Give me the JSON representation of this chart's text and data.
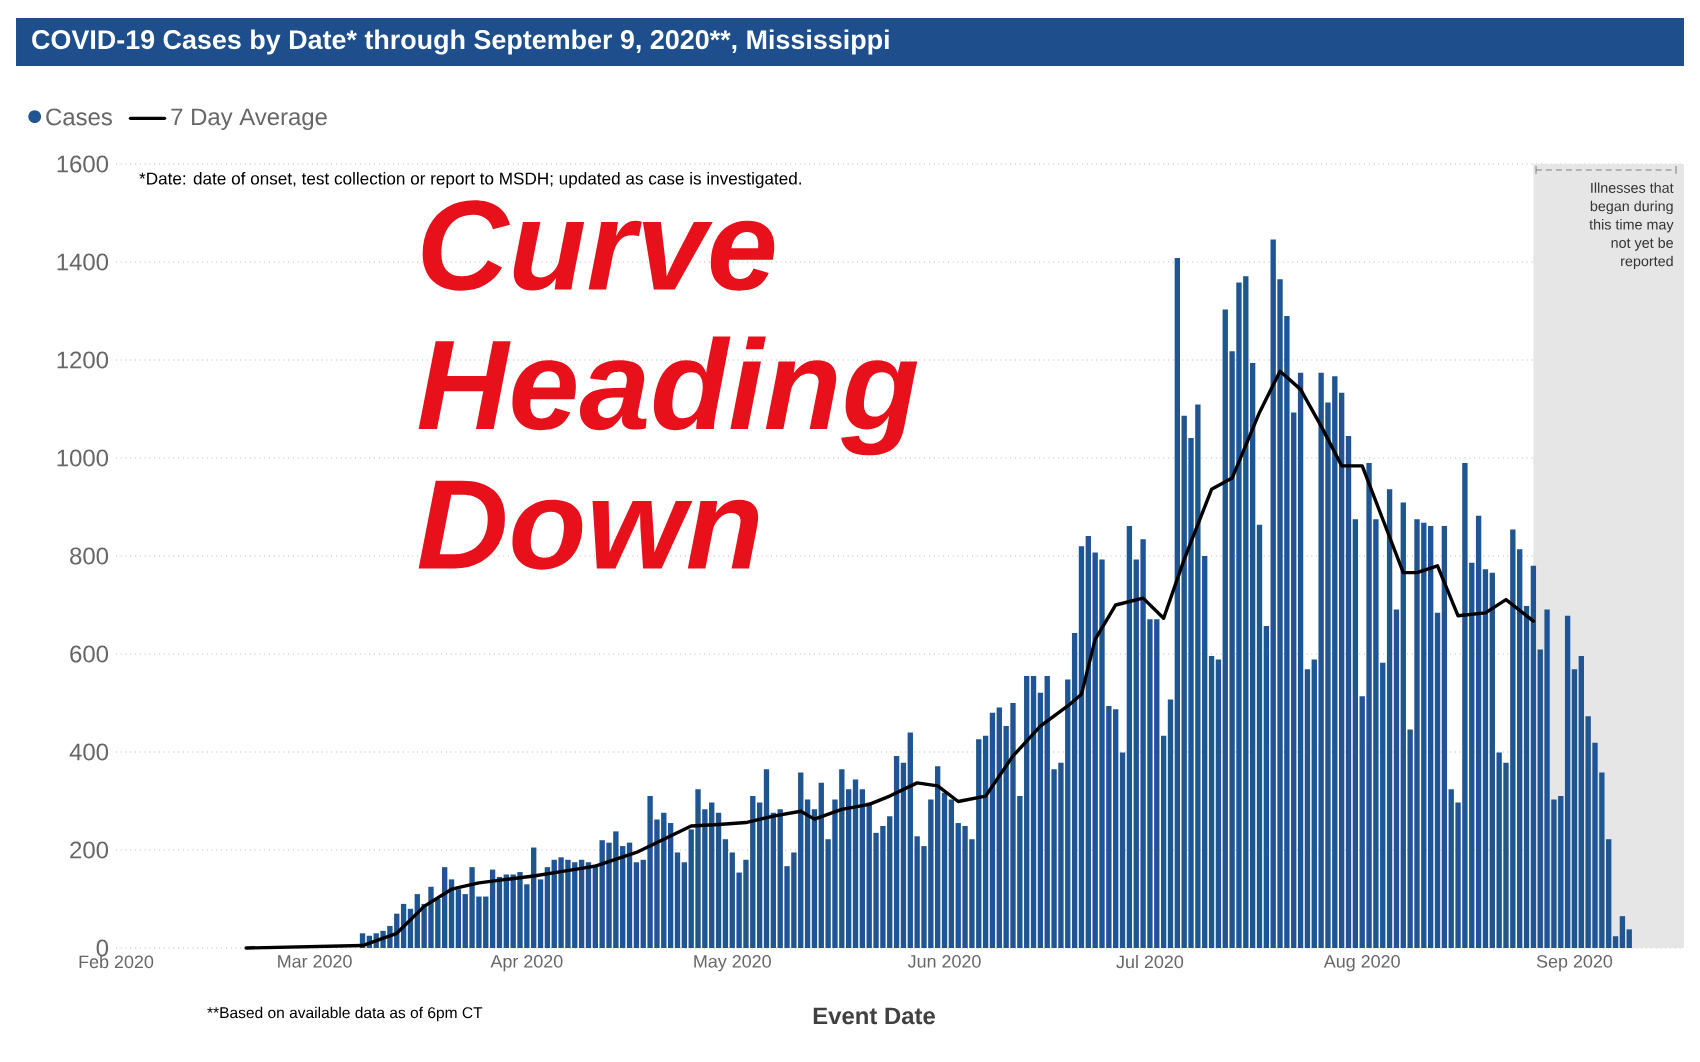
{
  "chart_data": {
    "type": "bar",
    "title": "COVID-19 Cases by Date* through September 9, 2020**, Mississippi",
    "xlabel": "Event Date",
    "annotations": [
      "*Date: date of onset, test collection or report to MSDH; updated as case is investigated.",
      "Curve Heading Down",
      "**Based on available data as of 6pm CT"
    ],
    "xlim": [
      "2020-02-01",
      "2020-09-17"
    ],
    "xticks": [
      {
        "value": "2020-02-01",
        "label": "Feb 2020"
      },
      {
        "value": "2020-03-01",
        "label": "Mar 2020"
      },
      {
        "value": "2020-04-01",
        "label": "Apr 2020"
      },
      {
        "value": "2020-05-01",
        "label": "May 2020"
      },
      {
        "value": "2020-06-01",
        "label": "Jun 2020"
      },
      {
        "value": "2020-07-01",
        "label": "Jul 2020"
      },
      {
        "value": "2020-08-01",
        "label": "Aug 2020"
      },
      {
        "value": "2020-09-01",
        "label": "Sep 2020"
      }
    ],
    "ylim": [
      0,
      1600
    ],
    "yticks": [
      0,
      200,
      400,
      600,
      800,
      1000,
      1200,
      1400,
      1600
    ],
    "grid": "y",
    "legend": "top left",
    "bands": [
      {
        "axis": "x",
        "from": "2020-08-26",
        "to": "2020-09-17",
        "label": "Illnesses that began during this time may not yet be reported",
        "color": "#e6e6e6"
      }
    ],
    "series": [
      {
        "name": "Cases",
        "color": "#1f5592",
        "x": [
          "2020-03-08",
          "2020-03-09",
          "2020-03-10",
          "2020-03-11",
          "2020-03-12",
          "2020-03-13",
          "2020-03-14",
          "2020-03-15",
          "2020-03-16",
          "2020-03-17",
          "2020-03-18",
          "2020-03-19",
          "2020-03-20",
          "2020-03-21",
          "2020-03-22",
          "2020-03-23",
          "2020-03-24",
          "2020-03-25",
          "2020-03-26",
          "2020-03-27",
          "2020-03-28",
          "2020-03-29",
          "2020-03-30",
          "2020-03-31",
          "2020-04-01",
          "2020-04-02",
          "2020-04-03",
          "2020-04-04",
          "2020-04-05",
          "2020-04-06",
          "2020-04-07",
          "2020-04-08",
          "2020-04-09",
          "2020-04-10",
          "2020-04-11",
          "2020-04-12",
          "2020-04-13",
          "2020-04-14",
          "2020-04-15",
          "2020-04-16",
          "2020-04-17",
          "2020-04-18",
          "2020-04-19",
          "2020-04-20",
          "2020-04-21",
          "2020-04-22",
          "2020-04-23",
          "2020-04-24",
          "2020-04-25",
          "2020-04-26",
          "2020-04-27",
          "2020-04-28",
          "2020-04-29",
          "2020-04-30",
          "2020-05-01",
          "2020-05-02",
          "2020-05-03",
          "2020-05-04",
          "2020-05-05",
          "2020-05-06",
          "2020-05-07",
          "2020-05-08",
          "2020-05-09",
          "2020-05-10",
          "2020-05-11",
          "2020-05-12",
          "2020-05-13",
          "2020-05-14",
          "2020-05-15",
          "2020-05-16",
          "2020-05-17",
          "2020-05-18",
          "2020-05-19",
          "2020-05-20",
          "2020-05-21",
          "2020-05-22",
          "2020-05-23",
          "2020-05-24",
          "2020-05-25",
          "2020-05-26",
          "2020-05-27",
          "2020-05-28",
          "2020-05-29",
          "2020-05-30",
          "2020-05-31",
          "2020-06-01",
          "2020-06-02",
          "2020-06-03",
          "2020-06-04",
          "2020-06-05",
          "2020-06-06",
          "2020-06-07",
          "2020-06-08",
          "2020-06-09",
          "2020-06-10",
          "2020-06-11",
          "2020-06-12",
          "2020-06-13",
          "2020-06-14",
          "2020-06-15",
          "2020-06-16",
          "2020-06-17",
          "2020-06-18",
          "2020-06-19",
          "2020-06-20",
          "2020-06-21",
          "2020-06-22",
          "2020-06-23",
          "2020-06-24",
          "2020-06-25",
          "2020-06-26",
          "2020-06-27",
          "2020-06-28",
          "2020-06-29",
          "2020-06-30",
          "2020-07-01",
          "2020-07-02",
          "2020-07-03",
          "2020-07-04",
          "2020-07-05",
          "2020-07-06",
          "2020-07-07",
          "2020-07-08",
          "2020-07-09",
          "2020-07-10",
          "2020-07-11",
          "2020-07-12",
          "2020-07-13",
          "2020-07-14",
          "2020-07-15",
          "2020-07-16",
          "2020-07-17",
          "2020-07-18",
          "2020-07-19",
          "2020-07-20",
          "2020-07-21",
          "2020-07-22",
          "2020-07-23",
          "2020-07-24",
          "2020-07-25",
          "2020-07-26",
          "2020-07-27",
          "2020-07-28",
          "2020-07-29",
          "2020-07-30",
          "2020-07-31",
          "2020-08-01",
          "2020-08-02",
          "2020-08-03",
          "2020-08-04",
          "2020-08-05",
          "2020-08-06",
          "2020-08-07",
          "2020-08-08",
          "2020-08-09",
          "2020-08-10",
          "2020-08-11",
          "2020-08-12",
          "2020-08-13",
          "2020-08-14",
          "2020-08-15",
          "2020-08-16",
          "2020-08-17",
          "2020-08-18",
          "2020-08-19",
          "2020-08-20",
          "2020-08-21",
          "2020-08-22",
          "2020-08-23",
          "2020-08-24",
          "2020-08-25",
          "2020-08-26",
          "2020-08-27",
          "2020-08-28",
          "2020-08-29",
          "2020-08-30",
          "2020-08-31",
          "2020-09-01",
          "2020-09-02",
          "2020-09-03",
          "2020-09-04",
          "2020-09-05",
          "2020-09-06",
          "2020-09-07",
          "2020-09-08",
          "2020-09-09"
        ],
        "values": [
          30,
          25,
          30,
          35,
          45,
          70,
          90,
          80,
          110,
          90,
          125,
          100,
          165,
          140,
          120,
          110,
          165,
          105,
          105,
          160,
          145,
          150,
          150,
          155,
          130,
          205,
          140,
          165,
          180,
          185,
          180,
          175,
          180,
          175,
          170,
          220,
          215,
          238,
          208,
          215,
          175,
          180,
          310,
          262,
          276,
          255,
          195,
          175,
          242,
          324,
          283,
          297,
          276,
          222,
          195,
          154,
          180,
          310,
          297,
          365,
          276,
          283,
          167,
          195,
          358,
          303,
          283,
          337,
          222,
          303,
          365,
          324,
          344,
          324,
          297,
          235,
          249,
          269,
          392,
          378,
          440,
          228,
          208,
          303,
          371,
          317,
          303,
          255,
          249,
          222,
          426,
          433,
          480,
          491,
          453,
          500,
          310,
          555,
          555,
          521,
          555,
          365,
          378,
          548,
          643,
          820,
          841,
          807,
          793,
          494,
          487,
          399,
          861,
          793,
          834,
          671,
          671,
          433,
          507,
          1408,
          1086,
          1041,
          1109,
          800,
          596,
          589,
          1303,
          1218,
          1358,
          1371,
          1194,
          864,
          657,
          1446,
          1365,
          1290,
          1093,
          1174,
          569,
          589,
          1174,
          1113,
          1167,
          1133,
          1045,
          875,
          514,
          990,
          875,
          582,
          936,
          691,
          909,
          446,
          875,
          868,
          861,
          684,
          861,
          324,
          297,
          990,
          786,
          882,
          773,
          766,
          399,
          378,
          854,
          814,
          698,
          780,
          609,
          691,
          303,
          310,
          678,
          569,
          596,
          473,
          419,
          358,
          222,
          24,
          65,
          38
        ]
      },
      {
        "name": "7 Day Average",
        "type": "line",
        "color": "#000000",
        "x": [
          "2020-02-20",
          "2020-03-08",
          "2020-03-13",
          "2020-03-17",
          "2020-03-21",
          "2020-03-25",
          "2020-03-29",
          "2020-04-02",
          "2020-04-06",
          "2020-04-11",
          "2020-04-17",
          "2020-04-21",
          "2020-04-25",
          "2020-04-29",
          "2020-05-03",
          "2020-05-07",
          "2020-05-11",
          "2020-05-13",
          "2020-05-17",
          "2020-05-21",
          "2020-05-24",
          "2020-05-28",
          "2020-05-31",
          "2020-06-03",
          "2020-06-07",
          "2020-06-11",
          "2020-06-15",
          "2020-06-19",
          "2020-06-21",
          "2020-06-23",
          "2020-06-26",
          "2020-06-30",
          "2020-07-03",
          "2020-07-06",
          "2020-07-10",
          "2020-07-13",
          "2020-07-17",
          "2020-07-20",
          "2020-07-23",
          "2020-07-26",
          "2020-07-29",
          "2020-08-01",
          "2020-08-04",
          "2020-08-07",
          "2020-08-09",
          "2020-08-12",
          "2020-08-15",
          "2020-08-19",
          "2020-08-22",
          "2020-08-26"
        ],
        "values": [
          0,
          5,
          30,
          85,
          120,
          133,
          140,
          147,
          156,
          167,
          195,
          222,
          249,
          252,
          256,
          269,
          279,
          263,
          283,
          293,
          310,
          337,
          331,
          299,
          310,
          392,
          453,
          494,
          518,
          630,
          700,
          714,
          673,
          793,
          936,
          959,
          1093,
          1177,
          1140,
          1065,
          984,
          984,
          875,
          766,
          766,
          780,
          678,
          684,
          711,
          667
        ]
      }
    ]
  }
}
